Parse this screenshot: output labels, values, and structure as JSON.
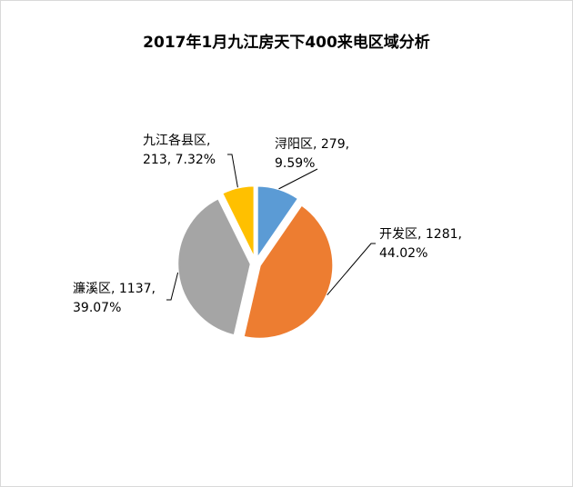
{
  "chart_data": {
    "type": "pie",
    "title": "2017年1月九江房天下400来电区域分析",
    "categories": [
      "浔阳区",
      "开发区",
      "濂溪区",
      "九江各县区"
    ],
    "values": [
      279,
      1281,
      1137,
      213
    ],
    "percents": [
      "9.59%",
      "44.02%",
      "39.07%",
      "7.32%"
    ],
    "labels": [
      {
        "line1": "浔阳区, 279,",
        "line2": "9.59%"
      },
      {
        "line1": "开发区, 1281,",
        "line2": "44.02%"
      },
      {
        "line1": "濂溪区, 1137,",
        "line2": "39.07%"
      },
      {
        "line1": "九江各县区,",
        "line2": "213, 7.32%"
      }
    ],
    "colors": [
      "#5b9bd5",
      "#ed7d31",
      "#a5a5a5",
      "#ffc000"
    ],
    "exploded": true,
    "legend": "none"
  }
}
